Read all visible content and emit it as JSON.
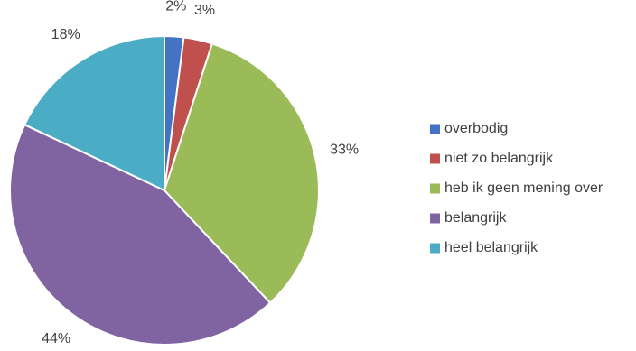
{
  "chart_data": {
    "type": "pie",
    "title": "",
    "legend_position": "right",
    "slices": [
      {
        "label": "overbodig",
        "value": 2,
        "value_label": "2%",
        "color": "#4472c4"
      },
      {
        "label": "niet zo belangrijk",
        "value": 3,
        "value_label": "3%",
        "color": "#c0504d"
      },
      {
        "label": "heb ik geen mening over",
        "value": 33,
        "value_label": "33%",
        "color": "#9bbb59"
      },
      {
        "label": "belangrijk",
        "value": 44,
        "value_label": "44%",
        "color": "#8064a2"
      },
      {
        "label": "heel belangrijk",
        "value": 18,
        "value_label": "18%",
        "color": "#4bacc6"
      }
    ]
  }
}
